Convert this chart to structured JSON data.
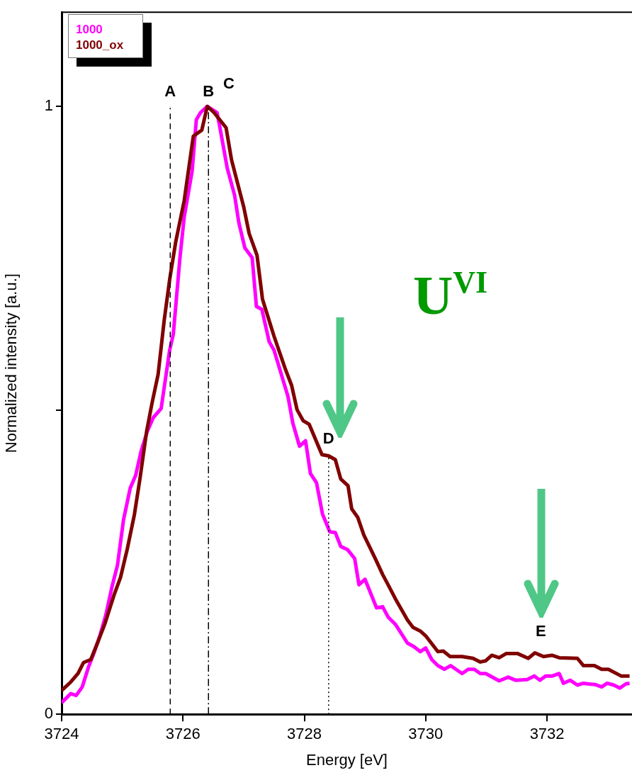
{
  "chart_data": {
    "type": "line",
    "xlabel": "Energy [eV]",
    "ylabel": "Normalized intensity [a.u.]",
    "xlim": [
      3724,
      3733.4
    ],
    "xticks": [
      3724,
      3726,
      3728,
      3730,
      3732
    ],
    "ylim": [
      0,
      1.155
    ],
    "yticks": [
      0,
      {
        "value": 0.5,
        "label": null
      },
      1
    ],
    "grid": false,
    "legend": "top left",
    "marker": "none",
    "line_style": "solid",
    "series": [
      {
        "name": "1000",
        "color": "#ff00ff",
        "x": [
          3724.0,
          3724.15,
          3724.24,
          3724.34,
          3724.44,
          3724.53,
          3724.63,
          3724.73,
          3724.83,
          3724.92,
          3725.02,
          3725.13,
          3725.22,
          3725.31,
          3725.41,
          3725.51,
          3725.64,
          3725.78,
          3725.84,
          3725.95,
          3726.02,
          3726.15,
          3726.22,
          3726.29,
          3726.4,
          3726.56,
          3726.6,
          3726.73,
          3726.85,
          3726.92,
          3727.02,
          3727.14,
          3727.21,
          3727.3,
          3727.42,
          3727.5,
          3727.73,
          3727.81,
          3727.92,
          3728.02,
          3728.1,
          3728.2,
          3728.3,
          3728.42,
          3728.51,
          3728.6,
          3728.71,
          3728.83,
          3728.9,
          3729.0,
          3729.19,
          3729.29,
          3729.38,
          3729.5,
          3729.7,
          3729.81,
          3729.91,
          3730.0,
          3730.1,
          3730.2,
          3730.31,
          3730.41,
          3730.6,
          3730.7,
          3730.8,
          3730.9,
          3730.99,
          3731.21,
          3731.36,
          3731.48,
          3731.67,
          3731.79,
          3731.88,
          3731.98,
          3732.09,
          3732.2,
          3732.27,
          3732.38,
          3732.5,
          3732.6,
          3732.67,
          3732.79,
          3732.9,
          3732.99,
          3733.1,
          3733.2,
          3733.3,
          3733.36
        ],
        "values": [
          0.019,
          0.034,
          0.031,
          0.045,
          0.077,
          0.1,
          0.129,
          0.164,
          0.21,
          0.245,
          0.32,
          0.372,
          0.393,
          0.433,
          0.465,
          0.488,
          0.503,
          0.599,
          0.625,
          0.751,
          0.818,
          0.893,
          0.978,
          0.99,
          1.0,
          0.99,
          0.97,
          0.898,
          0.854,
          0.809,
          0.767,
          0.751,
          0.671,
          0.666,
          0.613,
          0.599,
          0.523,
          0.479,
          0.441,
          0.45,
          0.396,
          0.381,
          0.329,
          0.3,
          0.299,
          0.276,
          0.271,
          0.256,
          0.213,
          0.222,
          0.175,
          0.177,
          0.16,
          0.148,
          0.117,
          0.111,
          0.103,
          0.109,
          0.09,
          0.08,
          0.074,
          0.08,
          0.067,
          0.074,
          0.074,
          0.067,
          0.067,
          0.055,
          0.061,
          0.056,
          0.057,
          0.063,
          0.056,
          0.063,
          0.063,
          0.067,
          0.051,
          0.056,
          0.048,
          0.051,
          0.05,
          0.049,
          0.045,
          0.051,
          0.048,
          0.043,
          0.05,
          0.051
        ]
      },
      {
        "name": "1000_ox",
        "color": "#800000",
        "x": [
          3724.0,
          3724.15,
          3724.27,
          3724.36,
          3724.48,
          3724.59,
          3724.71,
          3724.87,
          3724.97,
          3725.08,
          3725.2,
          3725.29,
          3725.4,
          3725.49,
          3725.59,
          3725.69,
          3725.78,
          3725.88,
          3726.02,
          3726.17,
          3726.31,
          3726.4,
          3726.51,
          3726.71,
          3726.8,
          3727.0,
          3727.09,
          3727.22,
          3727.31,
          3727.5,
          3727.69,
          3727.79,
          3727.88,
          3727.98,
          3728.08,
          3728.29,
          3728.4,
          3728.51,
          3728.6,
          3728.72,
          3728.78,
          3728.88,
          3728.98,
          3729.17,
          3729.29,
          3729.38,
          3729.5,
          3729.7,
          3729.79,
          3729.91,
          3730.0,
          3730.2,
          3730.29,
          3730.4,
          3730.6,
          3730.78,
          3730.9,
          3730.99,
          3731.09,
          3731.21,
          3731.33,
          3731.51,
          3731.69,
          3731.8,
          3731.94,
          3732.08,
          3732.2,
          3732.5,
          3732.6,
          3732.78,
          3732.9,
          3733.01,
          3733.22,
          3733.36
        ],
        "values": [
          0.039,
          0.053,
          0.067,
          0.085,
          0.09,
          0.117,
          0.148,
          0.198,
          0.225,
          0.271,
          0.329,
          0.387,
          0.465,
          0.512,
          0.559,
          0.648,
          0.715,
          0.777,
          0.845,
          0.951,
          0.961,
          1.0,
          0.99,
          0.965,
          0.912,
          0.835,
          0.791,
          0.755,
          0.683,
          0.622,
          0.567,
          0.541,
          0.501,
          0.483,
          0.477,
          0.427,
          0.425,
          0.419,
          0.387,
          0.376,
          0.338,
          0.324,
          0.295,
          0.256,
          0.23,
          0.213,
          0.19,
          0.155,
          0.143,
          0.137,
          0.129,
          0.103,
          0.104,
          0.095,
          0.095,
          0.092,
          0.086,
          0.088,
          0.097,
          0.093,
          0.1,
          0.1,
          0.092,
          0.101,
          0.095,
          0.097,
          0.093,
          0.092,
          0.08,
          0.08,
          0.074,
          0.074,
          0.063,
          0.063
        ]
      }
    ],
    "ref_lines": [
      {
        "axis": "x",
        "value": 3725.79,
        "label": "A",
        "line_style": "dashed",
        "color": "#000000"
      },
      {
        "axis": "x",
        "value": 3726.42,
        "label": "B",
        "line_style": "dashdot",
        "color": "#000000"
      },
      {
        "axis": "x",
        "value": 3728.4,
        "line_style": "dotted",
        "color": "#000000"
      }
    ],
    "annotations": [
      "C",
      {
        "text": "D",
        "x": 3728.4,
        "y": 0.425
      },
      "E",
      "U$^{VI}$"
    ]
  }
}
